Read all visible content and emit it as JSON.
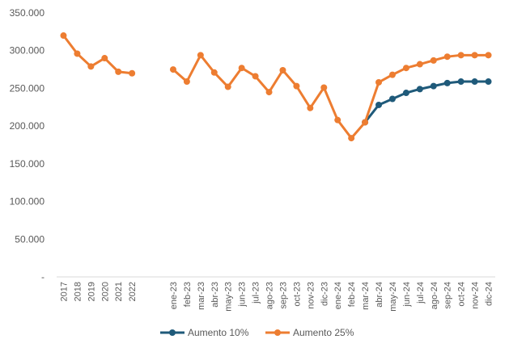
{
  "chart_data": {
    "type": "line",
    "title": "",
    "xlabel": "",
    "ylabel": "",
    "ylim": [
      0,
      350000
    ],
    "yticks": [
      0,
      50000,
      100000,
      150000,
      200000,
      250000,
      300000,
      350000
    ],
    "ytick_labels": [
      "-",
      "50.000",
      "100.000",
      "150.000",
      "200.000",
      "250.000",
      "300.000",
      "350.000"
    ],
    "grid": false,
    "legend_position": "bottom",
    "categories": [
      "2017",
      "2018",
      "2019",
      "2020",
      "2021",
      "2022",
      "",
      "",
      "ene-23",
      "feb-23",
      "mar-23",
      "abr-23",
      "may-23",
      "jun-23",
      "jul-23",
      "ago-23",
      "sep-23",
      "oct-23",
      "nov-23",
      "dic-23",
      "ene-24",
      "feb-24",
      "mar-24",
      "abr-24",
      "may-24",
      "jun-24",
      "jul-24",
      "ago-24",
      "sep-24",
      "oct-24",
      "nov-24",
      "dic-24"
    ],
    "series": [
      {
        "name": "Aumento 10%",
        "color": "#1f5a7a",
        "values": [
          null,
          null,
          null,
          null,
          null,
          null,
          null,
          null,
          null,
          null,
          null,
          null,
          null,
          null,
          null,
          null,
          null,
          null,
          null,
          null,
          null,
          null,
          205000,
          228000,
          236000,
          244000,
          249000,
          253000,
          257000,
          259000,
          259000,
          259000
        ]
      },
      {
        "name": "Aumento 25%",
        "color": "#ed7d31",
        "values": [
          320000,
          296000,
          279000,
          290000,
          272000,
          270000,
          null,
          null,
          275000,
          259000,
          294000,
          271000,
          252000,
          277000,
          266000,
          245000,
          274000,
          253000,
          224000,
          251000,
          208000,
          184000,
          205000,
          258000,
          268000,
          277000,
          282000,
          287000,
          292000,
          294000,
          294000,
          294000
        ]
      }
    ]
  }
}
